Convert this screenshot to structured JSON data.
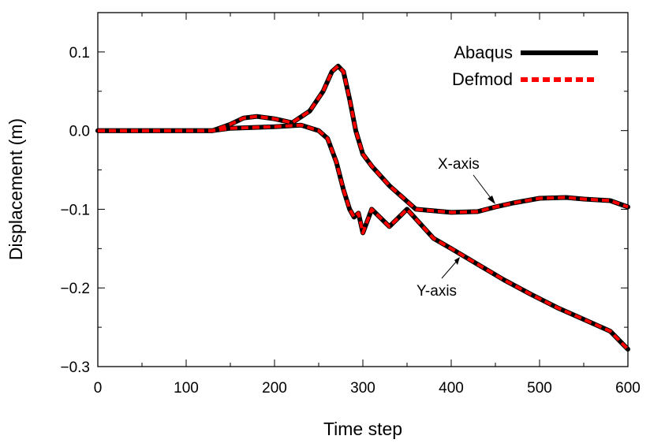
{
  "chart_data": {
    "type": "line",
    "xlabel": "Time step",
    "ylabel": "Displacement (m)",
    "xlim": [
      0,
      600
    ],
    "ylim": [
      -0.3,
      0.15
    ],
    "xticks": [
      0,
      100,
      200,
      300,
      400,
      500,
      600
    ],
    "xtick_labels": [
      "0",
      "100",
      "200",
      "300",
      "400",
      "500",
      "600"
    ],
    "yticks": [
      0.1,
      0.0,
      -0.1,
      -0.2,
      -0.3
    ],
    "ytick_labels": [
      "0.1",
      "0.0",
      "−0.1",
      "−0.2",
      "−0.3"
    ],
    "grid": false,
    "legend_position": "top-right",
    "legend": [
      {
        "label": "Abaqus",
        "color": "#000000",
        "style": "solid"
      },
      {
        "label": "Defmod",
        "color": "#ff0000",
        "style": "dashed"
      }
    ],
    "annotations": [
      {
        "text": "X-axis",
        "points_to": [
          450,
          -0.093
        ]
      },
      {
        "text": "Y-axis",
        "points_to": [
          340,
          -0.15
        ]
      }
    ],
    "curves": [
      {
        "component": "X-axis",
        "x": [
          0,
          130,
          150,
          165,
          180,
          200,
          220,
          240,
          255,
          265,
          272,
          278,
          285,
          292,
          300,
          310,
          330,
          360,
          400,
          430,
          450,
          470,
          500,
          530,
          550,
          580,
          600
        ],
        "y": [
          0,
          0,
          0.008,
          0.016,
          0.018,
          0.015,
          0.01,
          0.025,
          0.05,
          0.075,
          0.082,
          0.075,
          0.04,
          0.0,
          -0.03,
          -0.045,
          -0.07,
          -0.1,
          -0.104,
          -0.103,
          -0.097,
          -0.092,
          -0.086,
          -0.085,
          -0.087,
          -0.089,
          -0.097
        ]
      },
      {
        "component": "Y-axis",
        "x": [
          0,
          130,
          150,
          200,
          230,
          250,
          260,
          270,
          278,
          285,
          290,
          295,
          300,
          310,
          330,
          350,
          380,
          400,
          430,
          460,
          490,
          520,
          550,
          580,
          600
        ],
        "y": [
          0,
          0,
          0.003,
          0.005,
          0.007,
          0.0,
          -0.01,
          -0.04,
          -0.075,
          -0.1,
          -0.11,
          -0.105,
          -0.13,
          -0.1,
          -0.122,
          -0.1,
          -0.137,
          -0.15,
          -0.17,
          -0.19,
          -0.208,
          -0.225,
          -0.24,
          -0.255,
          -0.278
        ]
      }
    ]
  }
}
